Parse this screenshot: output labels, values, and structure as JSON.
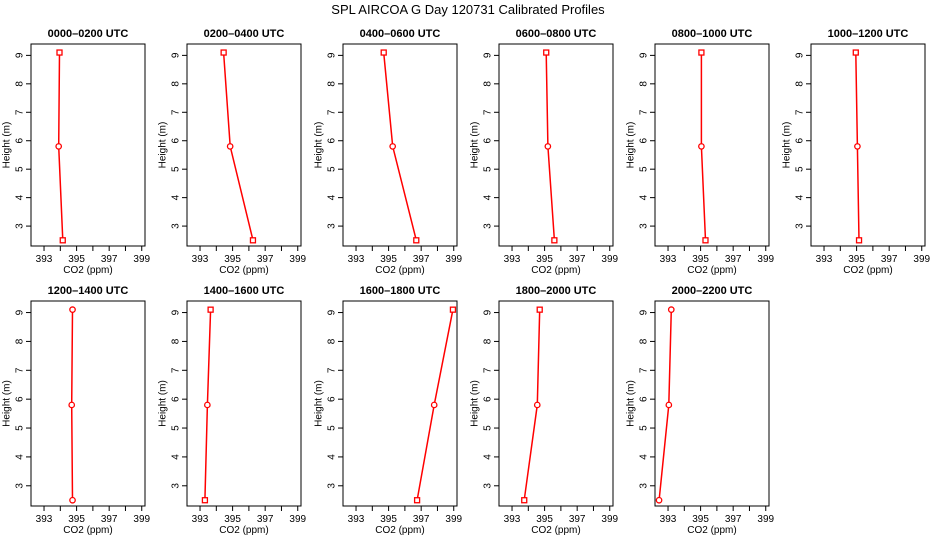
{
  "figure_title": "SPL AIRCOA G  Day 120731  Calibrated Profiles",
  "colors": {
    "series": "#ff0000",
    "axes": "#000000"
  },
  "chart_data": [
    {
      "type": "line",
      "title": "0000–0200 UTC",
      "xlabel": "CO2 (ppm)",
      "ylabel": "Height (m)",
      "xlim": [
        392.2,
        399.2
      ],
      "ylim": [
        2.3,
        9.4
      ],
      "xticks": [
        393,
        394,
        395,
        396,
        397,
        398,
        399
      ],
      "xtick_labels": [
        "393",
        "",
        "395",
        "",
        "397",
        "",
        "399"
      ],
      "yticks": [
        3,
        4,
        5,
        6,
        7,
        8,
        9
      ],
      "x": [
        394.15,
        393.9,
        393.95
      ],
      "y": [
        2.5,
        5.8,
        9.1
      ],
      "markers": [
        "square",
        "circle",
        "square"
      ]
    },
    {
      "type": "line",
      "title": "0200–0400 UTC",
      "xlabel": "CO2 (ppm)",
      "ylabel": "Height (m)",
      "xlim": [
        392.2,
        399.2
      ],
      "ylim": [
        2.3,
        9.4
      ],
      "xticks": [
        393,
        394,
        395,
        396,
        397,
        398,
        399
      ],
      "xtick_labels": [
        "393",
        "",
        "395",
        "",
        "397",
        "",
        "399"
      ],
      "yticks": [
        3,
        4,
        5,
        6,
        7,
        8,
        9
      ],
      "x": [
        396.25,
        394.85,
        394.45
      ],
      "y": [
        2.5,
        5.8,
        9.1
      ],
      "markers": [
        "square",
        "circle",
        "square"
      ]
    },
    {
      "type": "line",
      "title": "0400–0600 UTC",
      "xlabel": "CO2 (ppm)",
      "ylabel": "Height (m)",
      "xlim": [
        392.2,
        399.2
      ],
      "ylim": [
        2.3,
        9.4
      ],
      "xticks": [
        393,
        394,
        395,
        396,
        397,
        398,
        399
      ],
      "xtick_labels": [
        "393",
        "",
        "395",
        "",
        "397",
        "",
        "399"
      ],
      "yticks": [
        3,
        4,
        5,
        6,
        7,
        8,
        9
      ],
      "x": [
        396.7,
        395.25,
        394.7
      ],
      "y": [
        2.5,
        5.8,
        9.1
      ],
      "markers": [
        "square",
        "circle",
        "square"
      ]
    },
    {
      "type": "line",
      "title": "0600–0800 UTC",
      "xlabel": "CO2 (ppm)",
      "ylabel": "Height (m)",
      "xlim": [
        392.2,
        399.2
      ],
      "ylim": [
        2.3,
        9.4
      ],
      "xticks": [
        393,
        394,
        395,
        396,
        397,
        398,
        399
      ],
      "xtick_labels": [
        "393",
        "",
        "395",
        "",
        "397",
        "",
        "399"
      ],
      "yticks": [
        3,
        4,
        5,
        6,
        7,
        8,
        9
      ],
      "x": [
        395.6,
        395.2,
        395.1
      ],
      "y": [
        2.5,
        5.8,
        9.1
      ],
      "markers": [
        "square",
        "circle",
        "square"
      ]
    },
    {
      "type": "line",
      "title": "0800–1000 UTC",
      "xlabel": "CO2 (ppm)",
      "ylabel": "Height (m)",
      "xlim": [
        392.2,
        399.2
      ],
      "ylim": [
        2.3,
        9.4
      ],
      "xticks": [
        393,
        394,
        395,
        396,
        397,
        398,
        399
      ],
      "xtick_labels": [
        "393",
        "",
        "395",
        "",
        "397",
        "",
        "399"
      ],
      "yticks": [
        3,
        4,
        5,
        6,
        7,
        8,
        9
      ],
      "x": [
        395.3,
        395.05,
        395.05
      ],
      "y": [
        2.5,
        5.8,
        9.1
      ],
      "markers": [
        "square",
        "circle",
        "square"
      ]
    },
    {
      "type": "line",
      "title": "1000–1200 UTC",
      "xlabel": "CO2 (ppm)",
      "ylabel": "Height (m)",
      "xlim": [
        392.2,
        399.2
      ],
      "ylim": [
        2.3,
        9.4
      ],
      "xticks": [
        393,
        394,
        395,
        396,
        397,
        398,
        399
      ],
      "xtick_labels": [
        "393",
        "",
        "395",
        "",
        "397",
        "",
        "399"
      ],
      "yticks": [
        3,
        4,
        5,
        6,
        7,
        8,
        9
      ],
      "x": [
        395.15,
        395.05,
        394.95
      ],
      "y": [
        2.5,
        5.8,
        9.1
      ],
      "markers": [
        "square",
        "circle",
        "square"
      ]
    },
    {
      "type": "line",
      "title": "1200–1400 UTC",
      "xlabel": "CO2 (ppm)",
      "ylabel": "Height (m)",
      "xlim": [
        392.2,
        399.2
      ],
      "ylim": [
        2.3,
        9.4
      ],
      "xticks": [
        393,
        394,
        395,
        396,
        397,
        398,
        399
      ],
      "xtick_labels": [
        "393",
        "",
        "395",
        "",
        "397",
        "",
        "399"
      ],
      "yticks": [
        3,
        4,
        5,
        6,
        7,
        8,
        9
      ],
      "x": [
        394.75,
        394.7,
        394.75
      ],
      "y": [
        2.5,
        5.8,
        9.1
      ],
      "markers": [
        "circle",
        "circle",
        "circle"
      ]
    },
    {
      "type": "line",
      "title": "1400–1600 UTC",
      "xlabel": "CO2 (ppm)",
      "ylabel": "Height (m)",
      "xlim": [
        392.2,
        399.2
      ],
      "ylim": [
        2.3,
        9.4
      ],
      "xticks": [
        393,
        394,
        395,
        396,
        397,
        398,
        399
      ],
      "xtick_labels": [
        "393",
        "",
        "395",
        "",
        "397",
        "",
        "399"
      ],
      "yticks": [
        3,
        4,
        5,
        6,
        7,
        8,
        9
      ],
      "x": [
        393.3,
        393.45,
        393.65
      ],
      "y": [
        2.5,
        5.8,
        9.1
      ],
      "markers": [
        "square",
        "circle",
        "square"
      ]
    },
    {
      "type": "line",
      "title": "1600–1800 UTC",
      "xlabel": "CO2 (ppm)",
      "ylabel": "Height (m)",
      "xlim": [
        392.2,
        399.2
      ],
      "ylim": [
        2.3,
        9.4
      ],
      "xticks": [
        393,
        394,
        395,
        396,
        397,
        398,
        399
      ],
      "xtick_labels": [
        "393",
        "",
        "395",
        "",
        "397",
        "",
        "399"
      ],
      "yticks": [
        3,
        4,
        5,
        6,
        7,
        8,
        9
      ],
      "x": [
        396.75,
        397.8,
        398.95
      ],
      "y": [
        2.5,
        5.8,
        9.1
      ],
      "markers": [
        "square",
        "circle",
        "square"
      ]
    },
    {
      "type": "line",
      "title": "1800–2000 UTC",
      "xlabel": "CO2 (ppm)",
      "ylabel": "Height (m)",
      "xlim": [
        392.2,
        399.2
      ],
      "ylim": [
        2.3,
        9.4
      ],
      "xticks": [
        393,
        394,
        395,
        396,
        397,
        398,
        399
      ],
      "xtick_labels": [
        "393",
        "",
        "395",
        "",
        "397",
        "",
        "399"
      ],
      "yticks": [
        3,
        4,
        5,
        6,
        7,
        8,
        9
      ],
      "x": [
        393.75,
        394.55,
        394.7
      ],
      "y": [
        2.5,
        5.8,
        9.1
      ],
      "markers": [
        "square",
        "circle",
        "square"
      ]
    },
    {
      "type": "line",
      "title": "2000–2200 UTC",
      "xlabel": "CO2 (ppm)",
      "ylabel": "Height (m)",
      "xlim": [
        392.2,
        399.2
      ],
      "ylim": [
        2.3,
        9.4
      ],
      "xticks": [
        393,
        394,
        395,
        396,
        397,
        398,
        399
      ],
      "xtick_labels": [
        "393",
        "",
        "395",
        "",
        "397",
        "",
        "399"
      ],
      "yticks": [
        3,
        4,
        5,
        6,
        7,
        8,
        9
      ],
      "x": [
        392.45,
        393.05,
        393.2
      ],
      "y": [
        2.5,
        5.8,
        9.1
      ],
      "markers": [
        "circle",
        "circle",
        "circle"
      ]
    }
  ]
}
